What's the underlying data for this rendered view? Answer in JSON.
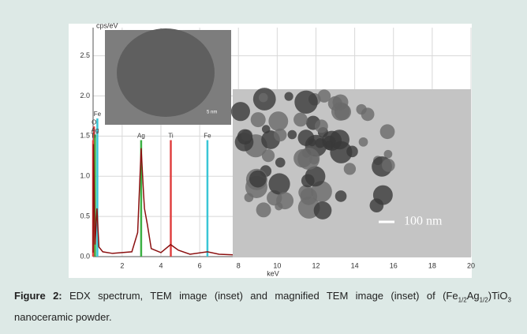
{
  "chart_data": {
    "type": "line",
    "y_label": "cps/eV",
    "x_label": "keV",
    "xlim": [
      0.5,
      20
    ],
    "xticks": [
      2,
      4,
      6,
      8,
      10,
      12,
      14,
      16,
      18,
      20
    ],
    "ylim": [
      0,
      2.85
    ],
    "yticks": [
      {
        "value": 0,
        "label": "0.0"
      },
      0.5,
      {
        "value": 1,
        "label": "1.0"
      },
      1.5,
      {
        "value": 2,
        "label": "2.0"
      },
      2.5
    ],
    "grid": true,
    "series": [
      {
        "color": "#8b1010",
        "x": [
          0.5,
          0.52,
          0.6,
          0.7,
          0.8,
          1.0,
          1.5,
          2.0,
          2.5,
          2.8,
          2.98,
          3.1,
          3.15,
          3.3,
          3.5,
          4.0,
          4.5,
          4.9,
          5.5,
          6.4,
          7.0,
          8.0,
          10.0
        ],
        "values": [
          0.05,
          1.4,
          0.15,
          0.6,
          0.12,
          0.06,
          0.04,
          0.05,
          0.06,
          0.3,
          1.35,
          0.8,
          0.6,
          0.4,
          0.1,
          0.05,
          0.15,
          0.08,
          0.03,
          0.06,
          0.03,
          0.02,
          0.01
        ]
      }
    ],
    "element_lines": [
      {
        "label": "Fe",
        "x": 0.72,
        "top": 1.72,
        "color": "#39c6d6"
      },
      {
        "label": "O",
        "x": 0.55,
        "top": 1.62,
        "color": "#e04040"
      },
      {
        "label": "Ag",
        "x": 0.6,
        "top": 1.52,
        "color": "#3cb043"
      },
      {
        "label": "Ti",
        "x": 0.5,
        "top": 1.45,
        "color": "#e04040"
      },
      {
        "label": "Ag",
        "x": 2.98,
        "top": 1.45,
        "color": "#3cb043"
      },
      {
        "label": "Ti",
        "x": 4.51,
        "top": 1.45,
        "color": "#e04040"
      },
      {
        "label": "Fe",
        "x": 6.4,
        "top": 1.45,
        "color": "#39c6d6"
      }
    ],
    "inset_small_scale": "5 nm",
    "inset_large_scale": "100 nm"
  },
  "caption": {
    "label": "Figure 2:",
    "parts": [
      "EDX spectrum, TEM image (inset) and magnified TEM image (inset) of (Fe",
      "1/2",
      "Ag",
      "1/2",
      ")TiO",
      "3",
      " nanoceramic powder."
    ]
  }
}
